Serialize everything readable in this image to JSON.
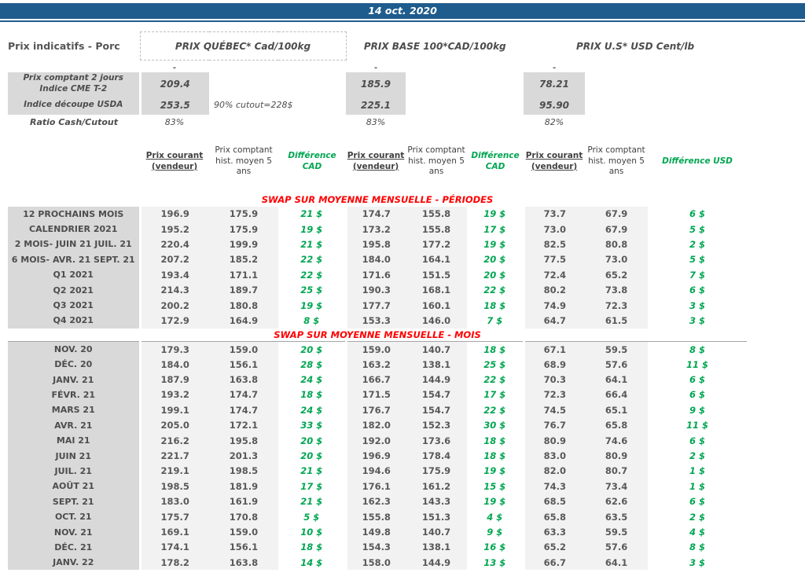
{
  "top_bar": {
    "date": "14 oct. 2020"
  },
  "page": {
    "title": "Prix indicatifs - Porc"
  },
  "groups": [
    {
      "label": "PRIX QUÉBEC* Cad/100kg"
    },
    {
      "label": "PRIX BASE 100*CAD/100kg"
    },
    {
      "label": "PRIX U.S* USD Cent/lb"
    }
  ],
  "summary": {
    "dash": "-",
    "rows": [
      {
        "label": "Prix comptant 2 jours\nIndice CME T-2",
        "quebec": "209.4",
        "base": "185.9",
        "us": "78.21"
      },
      {
        "label": "Indice découpe USDA",
        "quebec": "253.5",
        "note": "90% cutout=228$",
        "base": "225.1",
        "us": "95.90"
      },
      {
        "label": "Ratio Cash/Cutout",
        "quebec": "83%",
        "base": "83%",
        "us": "82%"
      }
    ]
  },
  "columns": {
    "current": "Prix courant (vendeur)",
    "hist": "Prix comptant hist. moyen 5 ans",
    "diff_cad": "Différence CAD",
    "diff_usd": "Différence USD"
  },
  "sections": [
    {
      "title": "SWAP SUR MOYENNE MENSUELLE - PÉRIODES",
      "rows": [
        {
          "label": "12 PROCHAINS MOIS",
          "values": [
            "196.9",
            "175.9",
            "21 $",
            "174.7",
            "155.8",
            "19 $",
            "73.7",
            "67.9",
            "6 $"
          ]
        },
        {
          "label": "CALENDRIER 2021",
          "values": [
            "195.2",
            "175.9",
            "19 $",
            "173.2",
            "155.8",
            "17 $",
            "73.0",
            "67.9",
            "5 $"
          ]
        },
        {
          "label": "2 MOIS- JUIN 21 JUIL. 21",
          "values": [
            "220.4",
            "199.9",
            "21 $",
            "195.8",
            "177.2",
            "19 $",
            "82.5",
            "80.8",
            "2 $"
          ]
        },
        {
          "label": "6 MOIS- AVR. 21 SEPT. 21",
          "values": [
            "207.2",
            "185.2",
            "22 $",
            "184.0",
            "164.1",
            "20 $",
            "77.5",
            "73.0",
            "5 $"
          ]
        },
        {
          "label": "Q1 2021",
          "values": [
            "193.4",
            "171.1",
            "22 $",
            "171.6",
            "151.5",
            "20 $",
            "72.4",
            "65.2",
            "7 $"
          ]
        },
        {
          "label": "Q2 2021",
          "values": [
            "214.3",
            "189.7",
            "25 $",
            "190.3",
            "168.1",
            "22 $",
            "80.2",
            "73.8",
            "6 $"
          ]
        },
        {
          "label": "Q3 2021",
          "values": [
            "200.2",
            "180.8",
            "19 $",
            "177.7",
            "160.1",
            "18 $",
            "74.9",
            "72.3",
            "3 $"
          ]
        },
        {
          "label": "Q4 2021",
          "values": [
            "172.9",
            "164.9",
            "8 $",
            "153.3",
            "146.0",
            "7 $",
            "64.7",
            "61.5",
            "3 $"
          ]
        }
      ]
    },
    {
      "title": "SWAP SUR MOYENNE MENSUELLE - MOIS",
      "rows": [
        {
          "label": "NOV. 20",
          "values": [
            "179.3",
            "159.0",
            "20 $",
            "159.0",
            "140.7",
            "18 $",
            "67.1",
            "59.5",
            "8 $"
          ]
        },
        {
          "label": "DÉC. 20",
          "values": [
            "184.0",
            "156.1",
            "28 $",
            "163.2",
            "138.1",
            "25 $",
            "68.9",
            "57.6",
            "11 $"
          ]
        },
        {
          "label": "JANV. 21",
          "values": [
            "187.9",
            "163.8",
            "24 $",
            "166.7",
            "144.9",
            "22 $",
            "70.3",
            "64.1",
            "6 $"
          ]
        },
        {
          "label": "FÉVR. 21",
          "values": [
            "193.2",
            "174.7",
            "18 $",
            "171.5",
            "154.7",
            "17 $",
            "72.3",
            "66.4",
            "6 $"
          ]
        },
        {
          "label": "MARS 21",
          "values": [
            "199.1",
            "174.7",
            "24 $",
            "176.7",
            "154.7",
            "22 $",
            "74.5",
            "65.1",
            "9 $"
          ]
        },
        {
          "label": "AVR. 21",
          "values": [
            "205.0",
            "172.1",
            "33 $",
            "182.0",
            "152.3",
            "30 $",
            "76.7",
            "65.8",
            "11 $"
          ]
        },
        {
          "label": "MAI 21",
          "values": [
            "216.2",
            "195.8",
            "20 $",
            "192.0",
            "173.6",
            "18 $",
            "80.9",
            "74.6",
            "6 $"
          ]
        },
        {
          "label": "JUIN 21",
          "values": [
            "221.7",
            "201.3",
            "20 $",
            "196.9",
            "178.4",
            "18 $",
            "83.0",
            "80.9",
            "2 $"
          ]
        },
        {
          "label": "JUIL. 21",
          "values": [
            "219.1",
            "198.5",
            "21 $",
            "194.6",
            "175.9",
            "19 $",
            "82.0",
            "80.7",
            "1 $"
          ]
        },
        {
          "label": "AOÛT 21",
          "values": [
            "198.5",
            "181.9",
            "17 $",
            "176.1",
            "161.2",
            "15 $",
            "74.3",
            "73.4",
            "1 $"
          ]
        },
        {
          "label": "SEPT. 21",
          "values": [
            "183.0",
            "161.9",
            "21 $",
            "162.3",
            "143.3",
            "19 $",
            "68.5",
            "62.6",
            "6 $"
          ]
        },
        {
          "label": "OCT. 21",
          "values": [
            "175.7",
            "170.8",
            "5 $",
            "155.8",
            "151.3",
            "4 $",
            "65.8",
            "63.5",
            "2 $"
          ]
        },
        {
          "label": "NOV. 21",
          "values": [
            "169.1",
            "159.0",
            "10 $",
            "149.8",
            "140.7",
            "9 $",
            "63.3",
            "59.5",
            "4 $"
          ]
        },
        {
          "label": "DÉC. 21",
          "values": [
            "174.1",
            "156.1",
            "18 $",
            "154.3",
            "138.1",
            "16 $",
            "65.2",
            "57.6",
            "8 $"
          ]
        },
        {
          "label": "JANV. 22",
          "values": [
            "178.2",
            "163.8",
            "14 $",
            "158.0",
            "144.9",
            "13 $",
            "66.7",
            "64.1",
            "3 $"
          ]
        }
      ]
    }
  ]
}
